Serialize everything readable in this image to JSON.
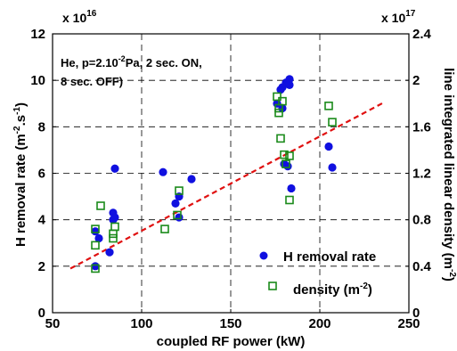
{
  "chart_data": {
    "type": "scatter",
    "title": "",
    "annotation_lines": [
      "He, p=2.10",
      "-2",
      "Pa, 2 sec. ON,",
      "8 sec. OFF)"
    ],
    "xlabel": "coupled RF power (kW)",
    "ylabel_left": {
      "main": "H removal rate (m",
      "sup1": "-2",
      "mid": ".s",
      "sup2": "-1",
      "end": ")"
    },
    "ylabel_right": {
      "main": "line integrated linear density (m",
      "sup": "-2",
      "end": ")"
    },
    "left_exponent": {
      "base": "x 10",
      "power": "16"
    },
    "right_exponent": {
      "base": "x 10",
      "power": "17"
    },
    "xlim": [
      50,
      250
    ],
    "ylim_left": [
      0,
      12
    ],
    "ylim_right": [
      0,
      2.4
    ],
    "x_ticks": [
      "50",
      "100",
      "150",
      "200",
      "250"
    ],
    "y_left_ticks": [
      "0",
      "2",
      "4",
      "6",
      "8",
      "10",
      "12"
    ],
    "y_right_ticks": [
      "0",
      "0.4",
      "0.8",
      "1.2",
      "1.6",
      "2",
      "2.4"
    ],
    "grid": "dashed",
    "legend_position": "bottom-right",
    "series": [
      {
        "name": "H removal rate",
        "axis": "left",
        "marker": "filled-circle",
        "color": "#1010e0",
        "points": [
          [
            74,
            2.0
          ],
          [
            74,
            3.5
          ],
          [
            76,
            3.2
          ],
          [
            82,
            2.6
          ],
          [
            84,
            4.0
          ],
          [
            84,
            4.3
          ],
          [
            85,
            4.1
          ],
          [
            85,
            6.2
          ],
          [
            112,
            6.05
          ],
          [
            119,
            4.7
          ],
          [
            121,
            4.1
          ],
          [
            121,
            5.0
          ],
          [
            128,
            5.75
          ],
          [
            176,
            9.0
          ],
          [
            178,
            9.6
          ],
          [
            179,
            8.8
          ],
          [
            179,
            9.7
          ],
          [
            180,
            6.4
          ],
          [
            181,
            9.9
          ],
          [
            182,
            6.3
          ],
          [
            183,
            10.05
          ],
          [
            183,
            9.8
          ],
          [
            184,
            5.35
          ],
          [
            205,
            7.15
          ],
          [
            207,
            6.25
          ]
        ]
      },
      {
        "name": "density",
        "name_sup": "-2",
        "name_prefix": "density (m",
        "name_suffix": ")",
        "axis": "right",
        "marker": "open-square",
        "color": "#1a8a1a",
        "points": [
          [
            74,
            0.38
          ],
          [
            74,
            0.58
          ],
          [
            74,
            0.72
          ],
          [
            77,
            0.92
          ],
          [
            84,
            0.64
          ],
          [
            84,
            0.68
          ],
          [
            85,
            0.74
          ],
          [
            113,
            0.72
          ],
          [
            120,
            0.84
          ],
          [
            121,
            1.05
          ],
          [
            176,
            1.86
          ],
          [
            177,
            1.72
          ],
          [
            177,
            1.76
          ],
          [
            178,
            1.5
          ],
          [
            179,
            1.82
          ],
          [
            180,
            1.36
          ],
          [
            181,
            1.28
          ],
          [
            183,
            1.35
          ],
          [
            183,
            0.97
          ],
          [
            205,
            1.78
          ],
          [
            207,
            1.64
          ]
        ]
      }
    ],
    "trend_line": {
      "style": "dashed",
      "color": "#e01010",
      "from": [
        60,
        1.9
      ],
      "to": [
        236,
        9.05
      ]
    }
  }
}
